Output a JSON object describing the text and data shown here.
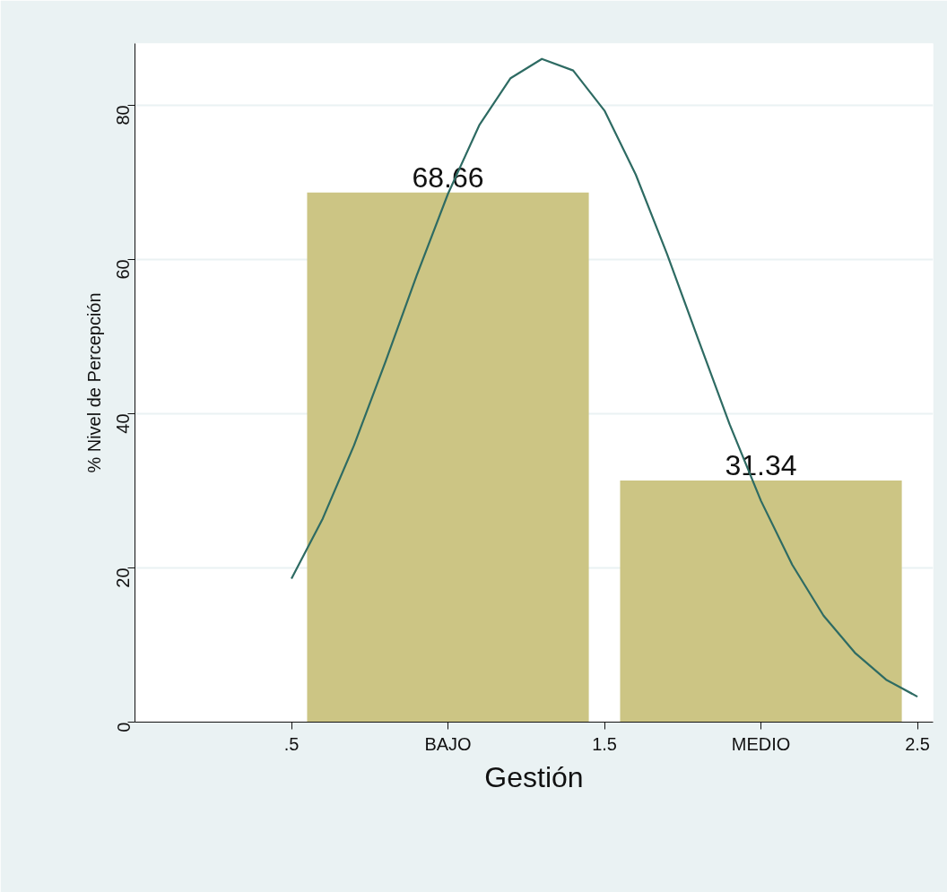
{
  "chart_data": {
    "type": "bar",
    "xlabel": "Gestión",
    "ylabel": "% Nivel de Percepción",
    "xlim": [
      0,
      2.55
    ],
    "ylim": [
      0,
      88
    ],
    "xticks": [
      {
        "value": 0.5,
        "label": ".5"
      },
      {
        "value": 1,
        "label": "BAJO"
      },
      1.5,
      {
        "value": 2,
        "label": "MEDIO"
      },
      2.5
    ],
    "yticks": [
      0,
      20,
      40,
      60,
      80
    ],
    "grid": "y",
    "series": [
      {
        "color": "#ccc584",
        "x": [
          1,
          2
        ],
        "values": [
          68.66,
          31.34
        ],
        "value_labels": [
          "68.66",
          "31.34"
        ]
      },
      {
        "type": "line",
        "color": "#2e6b63",
        "marker": "none",
        "line_style": "solid",
        "x": [
          0.5,
          0.6,
          0.7,
          0.8,
          0.9,
          1.0,
          1.1,
          1.2,
          1.3,
          1.4,
          1.5,
          1.6,
          1.7,
          1.8,
          1.9,
          2.0,
          2.1,
          2.2,
          2.3,
          2.4,
          2.5
        ],
        "values": [
          18.6,
          26.4,
          35.9,
          46.7,
          57.9,
          68.5,
          77.4,
          83.5,
          86.0,
          84.5,
          79.3,
          71.0,
          60.7,
          49.6,
          38.6,
          28.7,
          20.4,
          13.8,
          9.0,
          5.5,
          3.3
        ]
      }
    ]
  }
}
